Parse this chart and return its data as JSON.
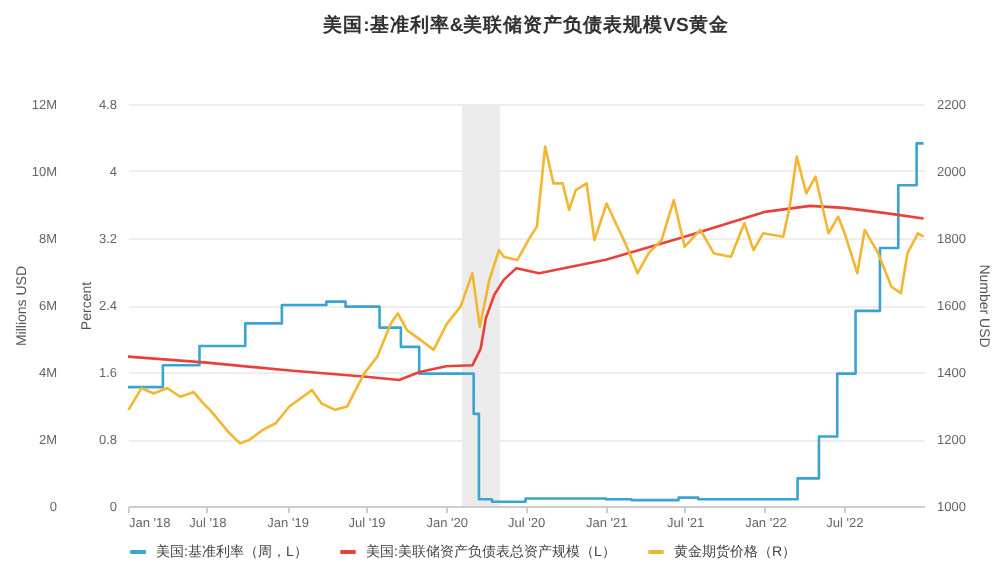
{
  "chart_data": {
    "type": "line",
    "title": "美国:基准利率&美联储资产负债表规模VS黄金",
    "ylabel": "Millions USD",
    "y2label": "Number USD",
    "y3label": "Percent",
    "xlim": [
      "2018-01-01",
      "2023-01-01"
    ],
    "xticks": [
      {
        "value": "2018-01-01",
        "label": "Jan '18"
      },
      {
        "value": "2018-07-01",
        "label": "Jul '18"
      },
      {
        "value": "2019-01-01",
        "label": "Jan '19"
      },
      {
        "value": "2019-07-01",
        "label": "Jul '19"
      },
      {
        "value": "2020-01-01",
        "label": "Jan '20"
      },
      {
        "value": "2020-07-01",
        "label": "Jul '20"
      },
      {
        "value": "2021-01-01",
        "label": "Jan '21"
      },
      {
        "value": "2021-07-01",
        "label": "Jul '21"
      },
      {
        "value": "2022-01-01",
        "label": "Jan '22"
      },
      {
        "value": "2022-07-01",
        "label": "Jul '22"
      }
    ],
    "ylim": [
      0,
      12
    ],
    "yticks": [
      0,
      {
        "value": 2,
        "label": "2M"
      },
      {
        "value": 4,
        "label": "4M"
      },
      {
        "value": 6,
        "label": "6M"
      },
      {
        "value": 8,
        "label": "8M"
      },
      {
        "value": 10,
        "label": "10M"
      },
      {
        "value": 12,
        "label": "12M"
      }
    ],
    "y2lim": [
      1000,
      2200
    ],
    "y2ticks": [
      1000,
      1200,
      1400,
      1600,
      1800,
      2000,
      2200
    ],
    "y3lim": [
      0,
      4.8
    ],
    "y3ticks": [
      0,
      0.8,
      1.6,
      2.4,
      3.2,
      4,
      4.8
    ],
    "grid": "y",
    "legend": "bottom",
    "bands": [
      {
        "axis": "x",
        "from": "2020-02-06",
        "to": "2020-05-03",
        "color": "#ebebeb"
      }
    ],
    "series": [
      {
        "name": "美国:基准利率（周，L）",
        "type": "step",
        "axis": "y3",
        "color": "#3ba3d0",
        "x": [
          "2018-01-01",
          "2018-03-22",
          "2018-06-14",
          "2018-09-27",
          "2018-12-20",
          "2019-04-01",
          "2019-05-15",
          "2019-08-01",
          "2019-09-19",
          "2019-10-31",
          "2020-03-04",
          "2020-03-16",
          "2020-04-15",
          "2020-07-01",
          "2021-01-01",
          "2021-03-01",
          "2021-06-17",
          "2021-08-01",
          "2022-03-17",
          "2022-05-05",
          "2022-06-16",
          "2022-07-28",
          "2022-09-22",
          "2022-11-03",
          "2022-12-15",
          "2022-12-31"
        ],
        "values": [
          1.42,
          1.68,
          1.91,
          2.18,
          2.4,
          2.44,
          2.38,
          2.13,
          1.9,
          1.58,
          1.1,
          0.08,
          0.05,
          0.09,
          0.08,
          0.07,
          0.1,
          0.08,
          0.33,
          0.83,
          1.58,
          2.33,
          3.08,
          3.83,
          4.33,
          4.33
        ]
      },
      {
        "name": "美国:美联储资产负债表总资产规模（L）",
        "axis": "y",
        "color": "#e8413a",
        "x": [
          "2018-01-01",
          "2018-07-01",
          "2019-01-01",
          "2019-07-01",
          "2019-09-15",
          "2019-11-01",
          "2020-01-01",
          "2020-03-01",
          "2020-03-20",
          "2020-04-01",
          "2020-04-20",
          "2020-05-12",
          "2020-06-10",
          "2020-08-01",
          "2021-01-01",
          "2021-07-01",
          "2022-01-01",
          "2022-04-15",
          "2022-07-01",
          "2022-10-01",
          "2022-12-31"
        ],
        "values": [
          4.46,
          4.28,
          4.05,
          3.86,
          3.76,
          4.0,
          4.17,
          4.2,
          4.7,
          5.6,
          6.3,
          6.75,
          7.1,
          6.95,
          7.35,
          8.04,
          8.78,
          8.96,
          8.9,
          8.75,
          8.58
        ]
      },
      {
        "name": "黄金期货价格（R）",
        "axis": "y2",
        "color": "#f2b630",
        "x": [
          "2018-01-02",
          "2018-02-01",
          "2018-03-01",
          "2018-04-01",
          "2018-05-01",
          "2018-06-01",
          "2018-06-23",
          "2018-07-08",
          "2018-08-22",
          "2018-09-15",
          "2018-10-06",
          "2018-11-06",
          "2018-12-06",
          "2019-01-06",
          "2019-02-06",
          "2019-02-27",
          "2019-03-21",
          "2019-04-21",
          "2019-05-19",
          "2019-06-03",
          "2019-06-27",
          "2019-07-27",
          "2019-08-27",
          "2019-09-12",
          "2019-10-03",
          "2019-11-03",
          "2019-12-03",
          "2020-01-03",
          "2020-02-03",
          "2020-03-01",
          "2020-03-18",
          "2020-04-09",
          "2020-05-01",
          "2020-05-12",
          "2020-06-12",
          "2020-07-12",
          "2020-07-27",
          "2020-08-15",
          "2020-09-03",
          "2020-09-24",
          "2020-10-09",
          "2020-10-24",
          "2020-11-18",
          "2020-12-06",
          "2021-01-03",
          "2021-01-24",
          "2021-02-15",
          "2021-03-15",
          "2021-04-09",
          "2021-05-09",
          "2021-06-06",
          "2021-07-01",
          "2021-08-06",
          "2021-09-06",
          "2021-10-15",
          "2021-11-15",
          "2021-12-06",
          "2021-12-28",
          "2022-02-12",
          "2022-02-27",
          "2022-03-15",
          "2022-04-06",
          "2022-04-27",
          "2022-05-27",
          "2022-06-18",
          "2022-07-03",
          "2022-08-01",
          "2022-08-18",
          "2022-09-18",
          "2022-10-18",
          "2022-11-09",
          "2022-11-24",
          "2022-12-18",
          "2022-12-31"
        ],
        "values": [
          1287,
          1352,
          1336,
          1352,
          1326,
          1340,
          1306,
          1287,
          1217,
          1187,
          1197,
          1227,
          1247,
          1297,
          1326,
          1346,
          1306,
          1287,
          1297,
          1336,
          1396,
          1446,
          1545,
          1575,
          1525,
          1496,
          1466,
          1545,
          1595,
          1695,
          1535,
          1675,
          1764,
          1744,
          1734,
          1804,
          1834,
          2073,
          1963,
          1963,
          1884,
          1943,
          1963,
          1794,
          1903,
          1844,
          1784,
          1695,
          1754,
          1794,
          1913,
          1774,
          1824,
          1754,
          1744,
          1844,
          1764,
          1814,
          1804,
          1894,
          2043,
          1933,
          1983,
          1814,
          1864,
          1814,
          1695,
          1824,
          1754,
          1655,
          1635,
          1754,
          1814,
          1804
        ]
      }
    ]
  }
}
